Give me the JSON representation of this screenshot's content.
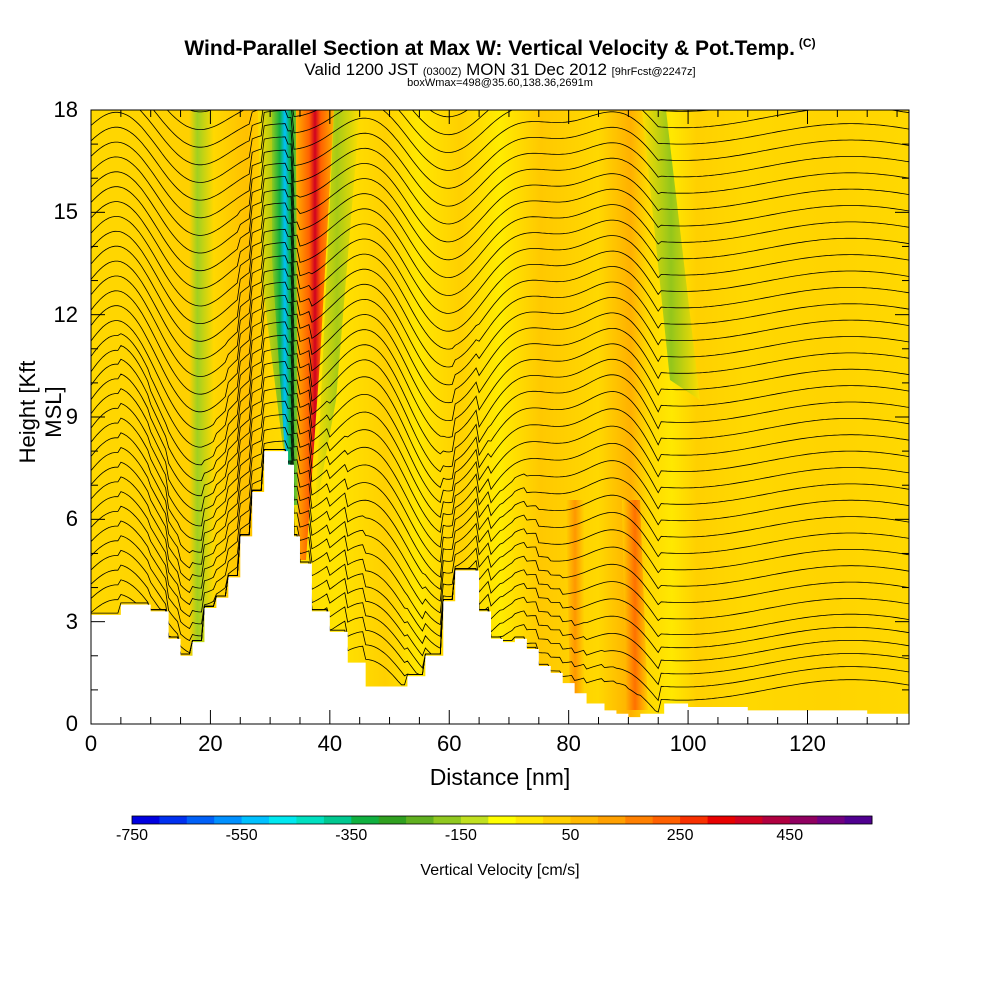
{
  "title": "Wind-Parallel Section at Max W: Vertical Velocity & Pot.Temp.",
  "title_unit": "(C)",
  "subtitle_main": "Valid 1200 JST",
  "subtitle_z": "(0300Z)",
  "subtitle_date": "MON 31 Dec 2012",
  "subtitle_fcst": "[9hrFcst@2247z]",
  "subtitle2": "boxWmax=498@35.60,138.36,2691m",
  "chart_data": {
    "type": "heatmap",
    "xlabel": "Distance [nm]",
    "ylabel": "Height [Kft MSL]",
    "xlim": [
      0,
      137
    ],
    "ylim": [
      0,
      18
    ],
    "x_ticks": [
      "0",
      "20",
      "40",
      "60",
      "80",
      "100",
      "120"
    ],
    "y_ticks": [
      "0",
      "3",
      "6",
      "9",
      "12",
      "15",
      "18"
    ],
    "colorbar_label": "Vertical Velocity [cm/s]",
    "colorbar_tick_labels": [
      "-750",
      "-550",
      "-350",
      "-150",
      "50",
      "250",
      "450"
    ],
    "colorbar_colors": [
      "#0000e0",
      "#0030f0",
      "#0060f8",
      "#0090ff",
      "#00c0ff",
      "#00e8f0",
      "#00e0c0",
      "#00c890",
      "#10b040",
      "#30a020",
      "#60b020",
      "#90c820",
      "#c0e020",
      "#ffff00",
      "#ffe800",
      "#ffd000",
      "#ffb800",
      "#ffa000",
      "#ff8000",
      "#ff6000",
      "#f83000",
      "#e80000",
      "#d00020",
      "#b00040",
      "#900060",
      "#700080",
      "#500090"
    ],
    "terrain": [
      [
        0,
        3.2
      ],
      [
        5,
        3.5
      ],
      [
        10,
        3.3
      ],
      [
        13,
        2.5
      ],
      [
        15,
        2.0
      ],
      [
        17,
        2.4
      ],
      [
        19,
        3.4
      ],
      [
        21,
        3.7
      ],
      [
        23,
        4.3
      ],
      [
        25,
        5.5
      ],
      [
        27,
        6.8
      ],
      [
        29,
        8.0
      ],
      [
        31,
        8.0
      ],
      [
        33,
        7.6
      ],
      [
        34,
        5.5
      ],
      [
        35,
        4.7
      ],
      [
        37,
        3.3
      ],
      [
        40,
        2.7
      ],
      [
        43,
        1.8
      ],
      [
        46,
        1.1
      ],
      [
        50,
        1.1
      ],
      [
        53,
        1.4
      ],
      [
        56,
        2.0
      ],
      [
        59,
        3.6
      ],
      [
        61,
        4.5
      ],
      [
        63,
        4.5
      ],
      [
        65,
        3.3
      ],
      [
        67,
        2.5
      ],
      [
        69,
        2.4
      ],
      [
        71,
        2.5
      ],
      [
        73,
        2.2
      ],
      [
        75,
        1.7
      ],
      [
        77,
        1.5
      ],
      [
        79,
        1.2
      ],
      [
        81,
        0.9
      ],
      [
        83,
        0.6
      ],
      [
        86,
        0.4
      ],
      [
        88,
        0.3
      ],
      [
        90,
        0.2
      ],
      [
        92,
        0.3
      ],
      [
        96,
        0.6
      ],
      [
        100,
        0.5
      ],
      [
        110,
        0.4
      ],
      [
        120,
        0.4
      ],
      [
        130,
        0.3
      ],
      [
        137,
        0.3
      ]
    ],
    "updraft_max_cm_s": 498,
    "updraft_max_at_nm": 37,
    "downdraft_min_at_nm": 33
  }
}
